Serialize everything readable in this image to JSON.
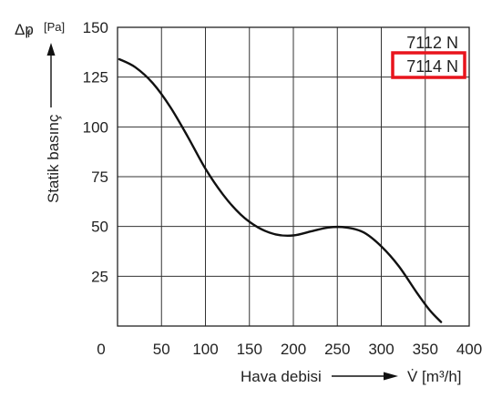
{
  "chart_data": {
    "type": "line",
    "title": "",
    "xlabel": "Hava debisi",
    "xunit": "V̇ [m³/h]",
    "ylabel": "Statik basınç",
    "yunit_symbol": "Δp",
    "yunit_sub": "f",
    "yunit": "[Pa]",
    "xlim": [
      0,
      400
    ],
    "ylim": [
      0,
      150
    ],
    "x_ticks": [
      0,
      50,
      100,
      150,
      200,
      250,
      300,
      350,
      400
    ],
    "y_ticks": [
      25,
      50,
      75,
      100,
      125,
      150
    ],
    "x_tick_labels": [
      "0",
      "50",
      "100",
      "150",
      "200",
      "250",
      "300",
      "350",
      "400"
    ],
    "y_tick_labels": [
      "25",
      "50",
      "75",
      "100",
      "125",
      "150"
    ],
    "grid": true,
    "legend_position": "top-right",
    "legend": [
      "7112 N",
      "7114 N"
    ],
    "highlighted_legend": "7114 N",
    "highlight_color": "#e8141c",
    "line_color": "#111111",
    "series": [
      {
        "x": [
          2,
          20,
          40,
          60,
          80,
          100,
          120,
          140,
          160,
          180,
          200,
          220,
          240,
          260,
          280,
          300,
          320,
          340,
          355,
          368
        ],
        "y": [
          134,
          130,
          122,
          110,
          95,
          79,
          66,
          56,
          49.5,
          46,
          45.5,
          47.5,
          49.5,
          49.5,
          47,
          40,
          30,
          17,
          8,
          2
        ]
      }
    ]
  }
}
